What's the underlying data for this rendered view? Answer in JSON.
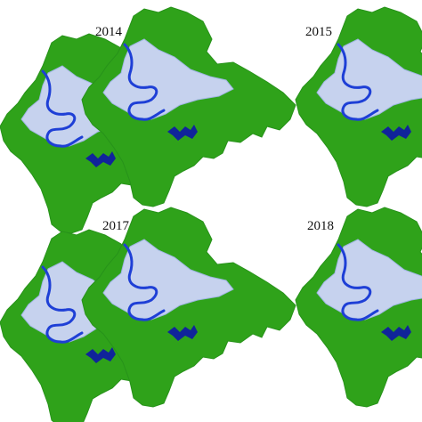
{
  "panels": [
    {
      "id": "left-top",
      "label": ""
    },
    {
      "id": "mid-top",
      "label": "2014"
    },
    {
      "id": "right-top",
      "label": "2015"
    },
    {
      "id": "left-bot",
      "label": ""
    },
    {
      "id": "mid-bot",
      "label": "2017"
    },
    {
      "id": "right-bot",
      "label": "2018"
    }
  ],
  "colors": {
    "vegetation": "#2fa21a",
    "urban": "#c6d2ee",
    "urban_edge": "#9fb6e3",
    "water": "#1e3fd6",
    "reservoir": "#10249a",
    "background": "#ffffff"
  }
}
